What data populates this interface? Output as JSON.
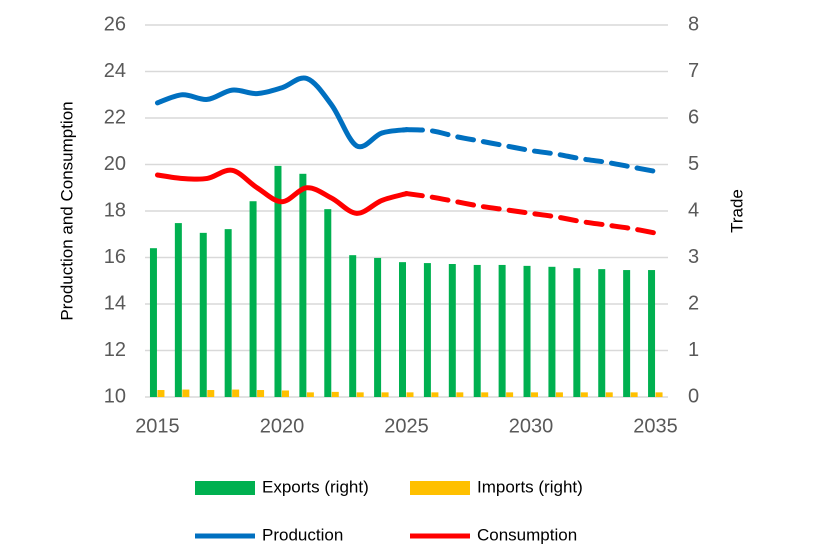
{
  "chart_data": {
    "type": "combo",
    "x": [
      2015,
      2016,
      2017,
      2018,
      2019,
      2020,
      2021,
      2022,
      2023,
      2024,
      2025,
      2026,
      2027,
      2028,
      2029,
      2030,
      2031,
      2032,
      2033,
      2034,
      2035
    ],
    "xlim": [
      2014.5,
      2035.5
    ],
    "xticks": [
      2015,
      2020,
      2025,
      2030,
      2035
    ],
    "ylim": [
      10,
      26
    ],
    "yticks": [
      10,
      12,
      14,
      16,
      18,
      20,
      22,
      24,
      26
    ],
    "y2lim": [
      0,
      8
    ],
    "y2ticks": [
      0,
      1,
      2,
      3,
      4,
      5,
      6,
      7,
      8
    ],
    "y_label": "Production and Consumption",
    "y2_label": "Trade",
    "grid": true,
    "legend": "bottom",
    "forecast_from": 2025,
    "series": [
      {
        "name": "Exports (right)",
        "type": "bar",
        "axis": "y2",
        "color": "#00b050",
        "values": [
          3.2,
          3.74,
          3.53,
          3.61,
          4.21,
          4.97,
          4.8,
          4.04,
          3.05,
          2.99,
          2.9,
          2.88,
          2.86,
          2.84,
          2.84,
          2.82,
          2.8,
          2.77,
          2.75,
          2.73,
          2.73
        ]
      },
      {
        "name": "Imports (right)",
        "type": "bar",
        "axis": "y2",
        "color": "#ffc000",
        "values": [
          0.15,
          0.16,
          0.15,
          0.16,
          0.15,
          0.14,
          0.1,
          0.11,
          0.1,
          0.1,
          0.1,
          0.1,
          0.1,
          0.1,
          0.1,
          0.1,
          0.1,
          0.1,
          0.1,
          0.1,
          0.1
        ]
      },
      {
        "name": "Production",
        "type": "line",
        "color": "#0070c0",
        "values": [
          22.65,
          23.0,
          22.8,
          23.2,
          23.05,
          23.3,
          23.7,
          22.55,
          20.8,
          21.35,
          21.5,
          21.45,
          21.2,
          21.0,
          20.8,
          20.6,
          20.45,
          20.25,
          20.1,
          19.9,
          19.7
        ]
      },
      {
        "name": "Consumption",
        "type": "line",
        "color": "#ff0000",
        "values": [
          19.55,
          19.4,
          19.4,
          19.75,
          19.0,
          18.4,
          19.0,
          18.55,
          17.9,
          18.45,
          18.75,
          18.6,
          18.4,
          18.2,
          18.05,
          17.9,
          17.75,
          17.55,
          17.4,
          17.25,
          17.05
        ]
      }
    ]
  }
}
